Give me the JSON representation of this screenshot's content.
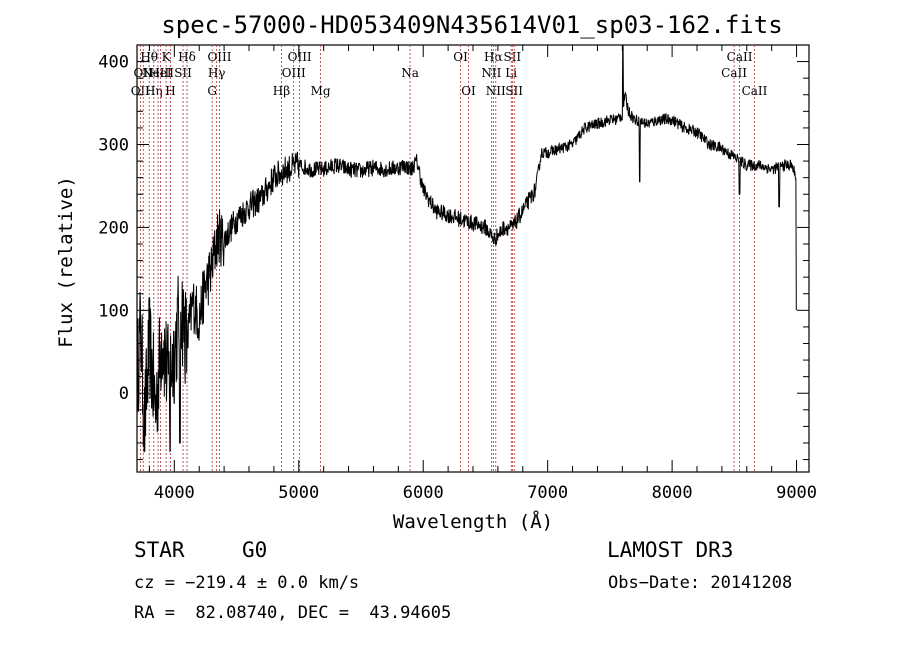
{
  "chart_data": {
    "type": "line",
    "title": "spec-57000-HD053409N435614V01_sp03-162.fits",
    "xlabel": "Wavelength (Å)",
    "ylabel": "Flux (relative)",
    "xlim": [
      3700,
      9100
    ],
    "ylim": [
      -95,
      420
    ],
    "xticks": [
      4000,
      5000,
      6000,
      7000,
      8000,
      9000
    ],
    "yticks": [
      0,
      100,
      200,
      300,
      400
    ],
    "series": [
      {
        "name": "spectrum",
        "anchors": [
          [
            3700,
            20
          ],
          [
            3730,
            80
          ],
          [
            3760,
            -40
          ],
          [
            3800,
            60
          ],
          [
            3850,
            -20
          ],
          [
            3900,
            70
          ],
          [
            3950,
            20
          ],
          [
            4000,
            50
          ],
          [
            4050,
            110
          ],
          [
            4100,
            60
          ],
          [
            4150,
            110
          ],
          [
            4200,
            90
          ],
          [
            4250,
            130
          ],
          [
            4300,
            150
          ],
          [
            4350,
            190
          ],
          [
            4400,
            185
          ],
          [
            4500,
            210
          ],
          [
            4600,
            225
          ],
          [
            4700,
            235
          ],
          [
            4800,
            260
          ],
          [
            4850,
            265
          ],
          [
            4900,
            270
          ],
          [
            5000,
            275
          ],
          [
            5100,
            270
          ],
          [
            5200,
            270
          ],
          [
            5300,
            275
          ],
          [
            5400,
            270
          ],
          [
            5500,
            268
          ],
          [
            5600,
            272
          ],
          [
            5700,
            270
          ],
          [
            5800,
            272
          ],
          [
            5850,
            275
          ],
          [
            5900,
            270
          ],
          [
            5950,
            280
          ],
          [
            6000,
            245
          ],
          [
            6100,
            220
          ],
          [
            6200,
            215
          ],
          [
            6300,
            210
          ],
          [
            6400,
            205
          ],
          [
            6500,
            200
          ],
          [
            6570,
            185
          ],
          [
            6650,
            200
          ],
          [
            6720,
            200
          ],
          [
            6800,
            220
          ],
          [
            6900,
            245
          ],
          [
            6950,
            290
          ],
          [
            7000,
            290
          ],
          [
            7100,
            295
          ],
          [
            7200,
            300
          ],
          [
            7300,
            320
          ],
          [
            7400,
            325
          ],
          [
            7500,
            330
          ],
          [
            7550,
            330
          ],
          [
            7600,
            335
          ],
          [
            7620,
            360
          ],
          [
            7650,
            340
          ],
          [
            7700,
            330
          ],
          [
            7800,
            325
          ],
          [
            7900,
            330
          ],
          [
            8000,
            330
          ],
          [
            8100,
            320
          ],
          [
            8200,
            315
          ],
          [
            8300,
            300
          ],
          [
            8400,
            295
          ],
          [
            8500,
            285
          ],
          [
            8550,
            280
          ],
          [
            8600,
            275
          ],
          [
            8700,
            275
          ],
          [
            8800,
            270
          ],
          [
            8900,
            275
          ],
          [
            8960,
            275
          ],
          [
            9000,
            260
          ]
        ],
        "features": [
          {
            "x": 7605,
            "y": 420,
            "kind": "emission"
          },
          {
            "x": 7740,
            "y": 255,
            "kind": "absorption"
          },
          {
            "x": 8542,
            "y": 240,
            "kind": "absorption"
          },
          {
            "x": 8860,
            "y": 225,
            "kind": "absorption"
          },
          {
            "x": 3965,
            "y": -70,
            "kind": "absorption"
          },
          {
            "x": 4045,
            "y": -60,
            "kind": "absorption"
          },
          {
            "x": 9000,
            "y": 100,
            "kind": "end-drop"
          }
        ]
      }
    ],
    "lines": [
      {
        "x": 3727,
        "label": "OII",
        "row": 3
      },
      {
        "x": 3750,
        "label": "OII",
        "row": 2
      },
      {
        "x": 3798,
        "label": "Hθ",
        "row": 1
      },
      {
        "x": 3835,
        "label": "Hη",
        "row": 3
      },
      {
        "x": 3869,
        "label": "NeIII",
        "row": 2
      },
      {
        "x": 3889,
        "label": "HeI",
        "row": 2
      },
      {
        "x": 3934,
        "label": "K",
        "row": 1
      },
      {
        "x": 3969,
        "label": "H",
        "row": 3
      },
      {
        "x": 4070,
        "label": "SII",
        "row": 2
      },
      {
        "x": 4102,
        "label": "Hδ",
        "row": 1
      },
      {
        "x": 4304,
        "label": "G",
        "row": 3
      },
      {
        "x": 4340,
        "label": "Hγ",
        "row": 2
      },
      {
        "x": 4363,
        "label": "OIII",
        "row": 1
      },
      {
        "x": 4861,
        "label": "Hβ",
        "row": 3
      },
      {
        "x": 4959,
        "label": "OIII",
        "row": 2
      },
      {
        "x": 5007,
        "label": "OIII",
        "row": 1
      },
      {
        "x": 5175,
        "label": "Mg",
        "row": 3
      },
      {
        "x": 5894,
        "label": "Na",
        "row": 2
      },
      {
        "x": 6300,
        "label": "OI",
        "row": 1
      },
      {
        "x": 6364,
        "label": "OI",
        "row": 3
      },
      {
        "x": 6548,
        "label": "NII",
        "row": 2
      },
      {
        "x": 6563,
        "label": "Hα",
        "row": 1
      },
      {
        "x": 6583,
        "label": "NII",
        "row": 3
      },
      {
        "x": 6707,
        "label": "Li",
        "row": 2
      },
      {
        "x": 6716,
        "label": "SII",
        "row": 1
      },
      {
        "x": 6731,
        "label": "SII",
        "row": 3
      },
      {
        "x": 8498,
        "label": "CaII",
        "row": 2
      },
      {
        "x": 8542,
        "label": "CaII",
        "row": 1
      },
      {
        "x": 8662,
        "label": "CaII",
        "row": 3
      }
    ]
  },
  "info": {
    "class": "STAR",
    "subclass": "G0",
    "survey": "LAMOST DR3",
    "cz": "cz = −219.4 ± 0.0 km/s",
    "obs_date": "Obs−Date: 20141208",
    "coords": "RA =  82.08740, DEC =  43.94605"
  }
}
